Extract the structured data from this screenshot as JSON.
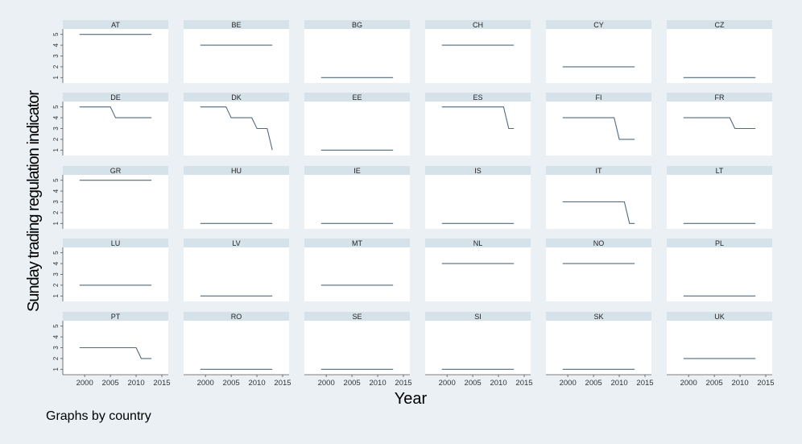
{
  "chart_data": {
    "type": "line",
    "title": "",
    "ylabel": "Sunday trading regulation indicator",
    "xlabel": "Year",
    "note": "Graphs by country",
    "xlim": [
      1997,
      2015
    ],
    "ylim": [
      0.5,
      5.5
    ],
    "xticks": [
      2000,
      2005,
      2010,
      2015
    ],
    "yticks": [
      1,
      2,
      3,
      4,
      5
    ],
    "line_color": "#4f6b80",
    "header_color": "#d5e2ea",
    "panel_color": "#ffffff",
    "background_color": "#eaf0f3",
    "panels": [
      {
        "country": "AT",
        "x": [
          1999,
          2013
        ],
        "y": [
          5,
          5
        ]
      },
      {
        "country": "BE",
        "x": [
          1999,
          2013
        ],
        "y": [
          4,
          4
        ]
      },
      {
        "country": "BG",
        "x": [
          1999,
          2013
        ],
        "y": [
          1,
          1
        ]
      },
      {
        "country": "CH",
        "x": [
          1999,
          2013
        ],
        "y": [
          4,
          4
        ]
      },
      {
        "country": "CY",
        "x": [
          1999,
          2013
        ],
        "y": [
          2,
          2
        ]
      },
      {
        "country": "CZ",
        "x": [
          1999,
          2013
        ],
        "y": [
          1,
          1
        ]
      },
      {
        "country": "DE",
        "x": [
          1999,
          2005,
          2006,
          2013
        ],
        "y": [
          5,
          5,
          4,
          4
        ]
      },
      {
        "country": "DK",
        "x": [
          1999,
          2004,
          2005,
          2008,
          2009,
          2010,
          2011,
          2012,
          2013
        ],
        "y": [
          5,
          5,
          4,
          4,
          4,
          3,
          3,
          3,
          1
        ]
      },
      {
        "country": "EE",
        "x": [
          1999,
          2013
        ],
        "y": [
          1,
          1
        ]
      },
      {
        "country": "ES",
        "x": [
          1999,
          2011,
          2012,
          2013
        ],
        "y": [
          5,
          5,
          3,
          3
        ]
      },
      {
        "country": "FI",
        "x": [
          1999,
          2009,
          2010,
          2013
        ],
        "y": [
          4,
          4,
          2,
          2
        ]
      },
      {
        "country": "FR",
        "x": [
          1999,
          2008,
          2009,
          2013
        ],
        "y": [
          4,
          4,
          3,
          3
        ]
      },
      {
        "country": "GR",
        "x": [
          1999,
          2013
        ],
        "y": [
          5,
          5
        ]
      },
      {
        "country": "HU",
        "x": [
          1999,
          2013
        ],
        "y": [
          1,
          1
        ]
      },
      {
        "country": "IE",
        "x": [
          1999,
          2013
        ],
        "y": [
          1,
          1
        ]
      },
      {
        "country": "IS",
        "x": [
          1999,
          2013
        ],
        "y": [
          1,
          1
        ]
      },
      {
        "country": "IT",
        "x": [
          1999,
          2011,
          2012,
          2013
        ],
        "y": [
          3,
          3,
          1,
          1
        ]
      },
      {
        "country": "LT",
        "x": [
          1999,
          2013
        ],
        "y": [
          1,
          1
        ]
      },
      {
        "country": "LU",
        "x": [
          1999,
          2013
        ],
        "y": [
          2,
          2
        ]
      },
      {
        "country": "LV",
        "x": [
          1999,
          2013
        ],
        "y": [
          1,
          1
        ]
      },
      {
        "country": "MT",
        "x": [
          1999,
          2013
        ],
        "y": [
          2,
          2
        ]
      },
      {
        "country": "NL",
        "x": [
          1999,
          2013
        ],
        "y": [
          4,
          4
        ]
      },
      {
        "country": "NO",
        "x": [
          1999,
          2013
        ],
        "y": [
          4,
          4
        ]
      },
      {
        "country": "PL",
        "x": [
          1999,
          2013
        ],
        "y": [
          1,
          1
        ]
      },
      {
        "country": "PT",
        "x": [
          1999,
          2010,
          2011,
          2013
        ],
        "y": [
          3,
          3,
          2,
          2
        ]
      },
      {
        "country": "RO",
        "x": [
          1999,
          2013
        ],
        "y": [
          1,
          1
        ]
      },
      {
        "country": "SE",
        "x": [
          1999,
          2013
        ],
        "y": [
          1,
          1
        ]
      },
      {
        "country": "SI",
        "x": [
          1999,
          2013
        ],
        "y": [
          1,
          1
        ]
      },
      {
        "country": "SK",
        "x": [
          1999,
          2013
        ],
        "y": [
          1,
          1
        ]
      },
      {
        "country": "UK",
        "x": [
          1999,
          2013
        ],
        "y": [
          2,
          2
        ]
      }
    ]
  }
}
